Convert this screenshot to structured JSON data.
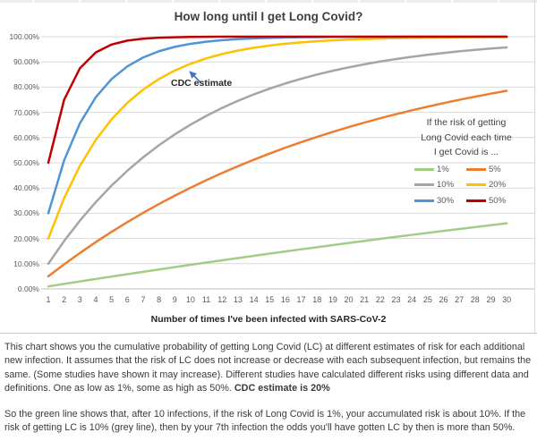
{
  "chart_data": {
    "type": "line",
    "title": "How long until I get Long Covid?",
    "xlabel": "Number of times I've been infected with SARS-CoV-2",
    "ylabel": "",
    "x": [
      1,
      2,
      3,
      4,
      5,
      6,
      7,
      8,
      9,
      10,
      11,
      12,
      13,
      14,
      15,
      16,
      17,
      18,
      19,
      20,
      21,
      22,
      23,
      24,
      25,
      26,
      27,
      28,
      29,
      30
    ],
    "y_ticks": [
      "100.00%",
      "90.00%",
      "80.00%",
      "70.00%",
      "60.00%",
      "50.00%",
      "40.00%",
      "30.00%",
      "20.00%",
      "10.00%",
      "0.00%"
    ],
    "ylim": [
      0,
      1
    ],
    "grid": true,
    "legend_position": "inside-right",
    "legend_title_lines": [
      "If the risk of getting",
      "Long Covid each time",
      "I get Covid is ..."
    ],
    "annotation": {
      "text": "CDC estimate",
      "arrow_color": "#4472c4"
    },
    "series": [
      {
        "name": "1%",
        "color": "#a0ce84",
        "values": [
          0.01,
          0.0199,
          0.0297,
          0.0394,
          0.049,
          0.0585,
          0.0679,
          0.0773,
          0.0865,
          0.0956,
          0.1047,
          0.1136,
          0.1225,
          0.1313,
          0.1399,
          0.1485,
          0.1571,
          0.1655,
          0.1738,
          0.1821,
          0.1903,
          0.1984,
          0.2064,
          0.2143,
          0.2222,
          0.23,
          0.2377,
          0.2453,
          0.2528,
          0.2603
        ]
      },
      {
        "name": "5%",
        "color": "#ed7d31",
        "values": [
          0.05,
          0.0975,
          0.1426,
          0.1855,
          0.2262,
          0.2649,
          0.3017,
          0.3366,
          0.3698,
          0.4013,
          0.4312,
          0.4596,
          0.4867,
          0.5123,
          0.5367,
          0.5599,
          0.5819,
          0.6028,
          0.6226,
          0.6415,
          0.6594,
          0.6765,
          0.6926,
          0.708,
          0.7226,
          0.7365,
          0.7497,
          0.7622,
          0.7741,
          0.7854
        ]
      },
      {
        "name": "10%",
        "color": "#a5a5a5",
        "values": [
          0.1,
          0.19,
          0.271,
          0.3439,
          0.4095,
          0.4686,
          0.5217,
          0.5695,
          0.6126,
          0.6513,
          0.6862,
          0.7176,
          0.7458,
          0.7712,
          0.7941,
          0.8147,
          0.8332,
          0.8499,
          0.8649,
          0.8784,
          0.8906,
          0.9015,
          0.9114,
          0.9202,
          0.9282,
          0.9354,
          0.9419,
          0.9477,
          0.9529,
          0.9576
        ]
      },
      {
        "name": "20%",
        "color": "#ffc000",
        "values": [
          0.2,
          0.36,
          0.488,
          0.5904,
          0.6723,
          0.7379,
          0.7903,
          0.8322,
          0.8658,
          0.8926,
          0.9141,
          0.9313,
          0.945,
          0.956,
          0.9648,
          0.9719,
          0.9775,
          0.982,
          0.9856,
          0.9885,
          0.9908,
          0.9926,
          0.9941,
          0.9953,
          0.9962,
          0.997,
          0.9976,
          0.9981,
          0.9985,
          0.9988
        ]
      },
      {
        "name": "30%",
        "color": "#4e95d8",
        "values": [
          0.3,
          0.51,
          0.657,
          0.7599,
          0.8319,
          0.8824,
          0.9176,
          0.9424,
          0.9596,
          0.9718,
          0.9802,
          0.9862,
          0.9903,
          0.9932,
          0.9953,
          0.9967,
          0.9977,
          0.9984,
          0.9989,
          0.9992,
          0.9994,
          0.9996,
          0.9997,
          0.9998,
          0.9999,
          0.9999,
          0.9999,
          1.0,
          1.0,
          1.0
        ]
      },
      {
        "name": "50%",
        "color": "#c00000",
        "values": [
          0.5,
          0.75,
          0.875,
          0.9375,
          0.9688,
          0.9844,
          0.9922,
          0.9961,
          0.998,
          0.999,
          0.9995,
          0.9998,
          0.9999,
          0.9999,
          1.0,
          1.0,
          1.0,
          1.0,
          1.0,
          1.0,
          1.0,
          1.0,
          1.0,
          1.0,
          1.0,
          1.0,
          1.0,
          1.0,
          1.0,
          1.0
        ]
      }
    ]
  },
  "body": {
    "p1": "This chart shows you the cumulative probability of getting Long Covid (LC) at different estimates of risk for each additional new infection. It assumes that the risk of LC does not increase or decrease with each subsequent infection, but remains the same. (Some studies have shown it may increase). Different studies have calculated different risks using different data and definitions. One as low as 1%, some as high as 50%. ",
    "p1_bold": "CDC estimate is 20%",
    "p2": "So the green line shows that, after 10 infections, if the risk of Long Covid is 1%, your accumulated risk is about 10%. If the risk of getting LC is 10% (grey line), then by your 7th infection the odds you'll have gotten LC by then is more than 50%."
  }
}
